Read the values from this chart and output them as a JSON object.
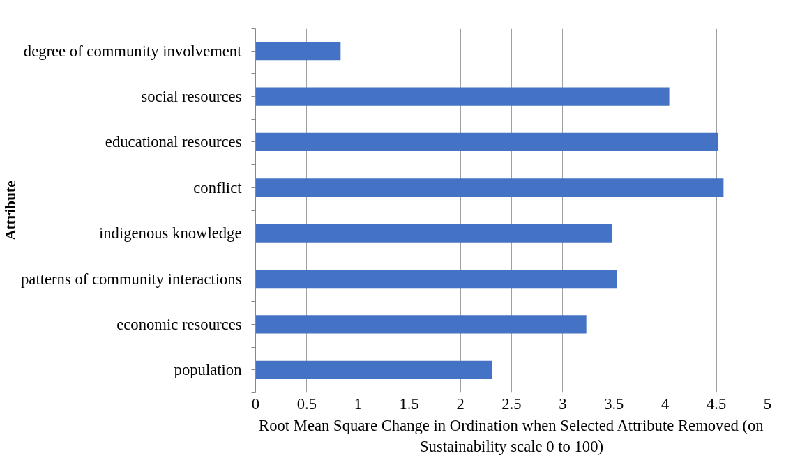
{
  "chart_data": {
    "type": "bar",
    "orientation": "horizontal",
    "categories": [
      "degree of community involvement",
      "social resources",
      "educational resources",
      "conflict",
      "indigenous knowledge",
      "patterns of community interactions",
      "economic resources",
      "population"
    ],
    "values": [
      0.83,
      4.04,
      4.52,
      4.57,
      3.48,
      3.53,
      3.23,
      2.31
    ],
    "color": "#4472c4",
    "xlim": [
      0,
      5
    ],
    "xticks": [
      0,
      0.5,
      1,
      1.5,
      2,
      2.5,
      3,
      3.5,
      4,
      4.5,
      5
    ],
    "xlabel": "Root Mean Square Change in Ordination when Selected Attribute Removed (on Sustainability scale 0 to 100)",
    "ylabel": "Attribute",
    "grid": "x"
  }
}
